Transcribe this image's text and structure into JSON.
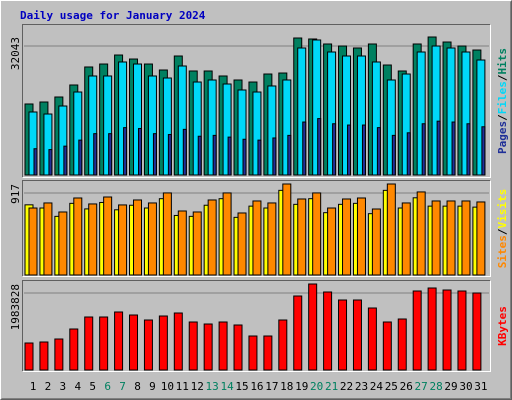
{
  "chart_data": [
    {
      "type": "bar",
      "title": "Daily usage for January 2024",
      "ylim": [
        0,
        32043
      ],
      "yticks": [
        32043
      ],
      "grid": true,
      "legend_separator": "/",
      "series": [
        {
          "name": "Hits",
          "color": "#008060",
          "values": [
            16490,
            16950,
            18110,
            20900,
            25080,
            25770,
            27860,
            26930,
            25770,
            24380,
            27630,
            24150,
            24150,
            22990,
            22060,
            21590,
            23450,
            23680,
            31810,
            31580,
            30420,
            29950,
            29490,
            30420,
            25540,
            24150,
            30420,
            32043,
            30880,
            29950,
            29020
          ]
        },
        {
          "name": "Files",
          "color": "#00d8f8",
          "values": [
            14630,
            14160,
            16020,
            19270,
            22990,
            22990,
            26240,
            25770,
            22990,
            22520,
            25310,
            21590,
            22060,
            21130,
            19740,
            19270,
            20670,
            22060,
            29490,
            31350,
            28560,
            27630,
            27630,
            26240,
            22060,
            23450,
            28560,
            29950,
            29490,
            28560,
            26700
          ]
        },
        {
          "name": "Pages",
          "color": "#203098",
          "values": [
            6100,
            5900,
            6700,
            8100,
            9600,
            9600,
            11000,
            10800,
            9600,
            9400,
            10600,
            9000,
            9200,
            8800,
            8300,
            8100,
            8600,
            9200,
            12300,
            13100,
            11900,
            11600,
            11600,
            11000,
            9200,
            9800,
            11900,
            12500,
            12300,
            11900,
            11200
          ]
        }
      ]
    },
    {
      "type": "bar",
      "ylim": [
        0,
        917
      ],
      "yticks": [
        917
      ],
      "grid": true,
      "legend_separator": "/",
      "series": [
        {
          "name": "Visits",
          "color": "#ffff00",
          "values": [
            707,
            675,
            591,
            722,
            666,
            731,
            657,
            703,
            675,
            769,
            600,
            591,
            703,
            769,
            581,
            694,
            675,
            853,
            712,
            769,
            628,
            712,
            722,
            618,
            853,
            675,
            778,
            694,
            694,
            694,
            684
          ]
        },
        {
          "name": "Sites",
          "color": "#ff8800",
          "values": [
            675,
            726,
            635,
            776,
            716,
            786,
            706,
            756,
            726,
            827,
            645,
            635,
            756,
            827,
            625,
            746,
            726,
            917,
            766,
            827,
            675,
            766,
            776,
            665,
            917,
            726,
            837,
            746,
            746,
            746,
            736
          ]
        }
      ]
    },
    {
      "type": "bar",
      "ylim": [
        0,
        1983828
      ],
      "yticks": [
        1983828
      ],
      "grid": true,
      "categories": [
        "1",
        "2",
        "3",
        "4",
        "5",
        "6",
        "7",
        "8",
        "9",
        "10",
        "11",
        "12",
        "13",
        "14",
        "15",
        "16",
        "17",
        "18",
        "19",
        "20",
        "21",
        "22",
        "23",
        "24",
        "25",
        "26",
        "27",
        "28",
        "29",
        "30",
        "31"
      ],
      "highlight_categories": [
        "6",
        "7",
        "13",
        "14",
        "20",
        "21",
        "27",
        "28"
      ],
      "highlight_color": "#008060",
      "series": [
        {
          "name": "KBytes",
          "color": "#ff0000",
          "values": [
            622800,
            645900,
            715100,
            945800,
            1222600,
            1222600,
            1338000,
            1268700,
            1153400,
            1245700,
            1314900,
            1107300,
            1061100,
            1107300,
            1038100,
            784300,
            784300,
            1153400,
            1707000,
            1983828,
            1799300,
            1614800,
            1614800,
            1430200,
            1107300,
            1176500,
            1822400,
            1891600,
            1845400,
            1822400,
            1776200
          ]
        }
      ]
    }
  ]
}
